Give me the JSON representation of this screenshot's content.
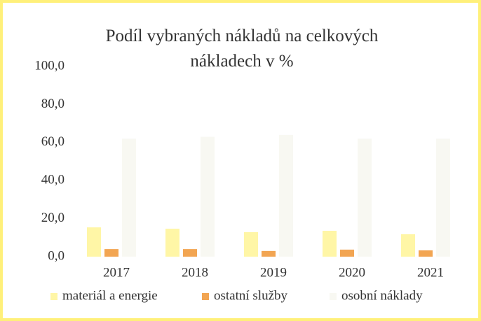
{
  "chart_data": {
    "type": "bar",
    "title": "Podíl vybraných nákladů na celkových nákladech v %",
    "categories": [
      "2017",
      "2018",
      "2019",
      "2020",
      "2021"
    ],
    "series": [
      {
        "name": "materiál a energie",
        "color": "#fff6a6",
        "values": [
          15.4,
          14.7,
          12.9,
          13.6,
          11.8
        ]
      },
      {
        "name": "ostatní služby",
        "color": "#f2a552",
        "values": [
          4.0,
          4.0,
          3.0,
          3.7,
          3.3
        ]
      },
      {
        "name": "osobní náklady",
        "color": "#f8f8f2",
        "values": [
          62,
          63,
          64,
          62,
          62
        ]
      }
    ],
    "ylim": [
      0,
      100
    ],
    "yticks": [
      {
        "value": 0,
        "label": "0,0"
      },
      {
        "value": 20,
        "label": "20,0"
      },
      {
        "value": 40,
        "label": "40,0"
      },
      {
        "value": 60,
        "label": "60,0"
      },
      {
        "value": 80,
        "label": "80,0"
      },
      {
        "value": 100,
        "label": "100,0"
      }
    ],
    "grid": false,
    "legend": "bottom"
  }
}
